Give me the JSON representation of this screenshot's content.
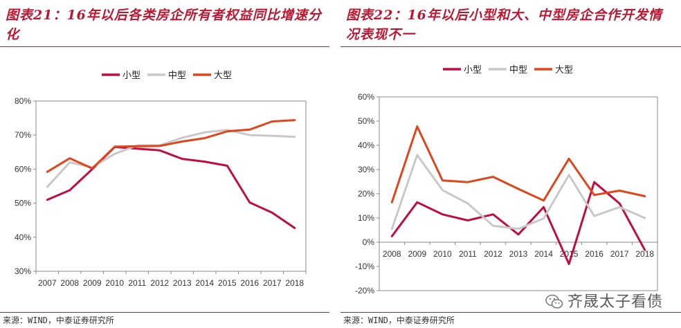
{
  "charts": [
    {
      "title": "图表21：16年以后各类房企所有者权益同比增速分化",
      "source": "来源：WIND，中泰证券研究所"
    },
    {
      "title": "图表22：16年以后小型和大、中型房企合作开发情况表现不一",
      "source": "来源：WIND，中泰证券研究所"
    }
  ],
  "watermark": "齐晟太子看债",
  "colors": {
    "small": "#c00c3f",
    "medium": "#c8c8c8",
    "large": "#e0441b",
    "accent": "#c0152f"
  },
  "chart_data": [
    {
      "type": "line",
      "title": "图表21：16年以后各类房企所有者权益同比增速分化",
      "categories": [
        "2007",
        "2008",
        "2009",
        "2010",
        "2011",
        "2012",
        "2013",
        "2014",
        "2015",
        "2016",
        "2017",
        "2018"
      ],
      "series": [
        {
          "name": "小型",
          "values": [
            51.0,
            53.8,
            60.0,
            66.5,
            66.0,
            65.5,
            63.0,
            62.2,
            61.0,
            50.2,
            47.2,
            42.7
          ]
        },
        {
          "name": "中型",
          "values": [
            54.8,
            62.0,
            60.5,
            64.5,
            67.0,
            67.0,
            69.2,
            70.8,
            71.5,
            70.0,
            69.8,
            69.5
          ]
        },
        {
          "name": "大型",
          "values": [
            59.2,
            63.2,
            60.2,
            66.6,
            66.7,
            66.8,
            68.1,
            69.1,
            71.1,
            71.6,
            74.0,
            74.4
          ]
        }
      ],
      "ylim": [
        30,
        80
      ],
      "yticks": [
        30,
        40,
        50,
        60,
        70,
        80
      ],
      "ytick_labels": [
        "30%",
        "40%",
        "50%",
        "60%",
        "70%",
        "80%"
      ],
      "legend": "top-center"
    },
    {
      "type": "line",
      "title": "图表22：16年以后小型和大、中型房企合作开发情况表现不一",
      "categories": [
        "2008",
        "2009",
        "2010",
        "2011",
        "2012",
        "2013",
        "2014",
        "2015",
        "2016",
        "2017",
        "2018"
      ],
      "series": [
        {
          "name": "小型",
          "values": [
            2.5,
            16.5,
            11.5,
            9.0,
            11.5,
            3.2,
            14.5,
            -9.0,
            24.8,
            16.0,
            -3.2
          ]
        },
        {
          "name": "中型",
          "values": [
            5.5,
            36.0,
            21.5,
            16.0,
            6.8,
            5.5,
            9.8,
            27.8,
            10.8,
            14.5,
            10.0
          ]
        },
        {
          "name": "大型",
          "values": [
            16.5,
            47.8,
            25.5,
            24.8,
            27.0,
            22.0,
            17.2,
            34.5,
            19.5,
            21.3,
            19.0
          ]
        }
      ],
      "ylim": [
        -20,
        60
      ],
      "yticks": [
        -20,
        -10,
        0,
        10,
        20,
        30,
        40,
        50,
        60
      ],
      "ytick_labels": [
        "-20%",
        "-10%",
        "0%",
        "10%",
        "20%",
        "30%",
        "40%",
        "50%",
        "60%"
      ],
      "legend": "top-center"
    }
  ]
}
